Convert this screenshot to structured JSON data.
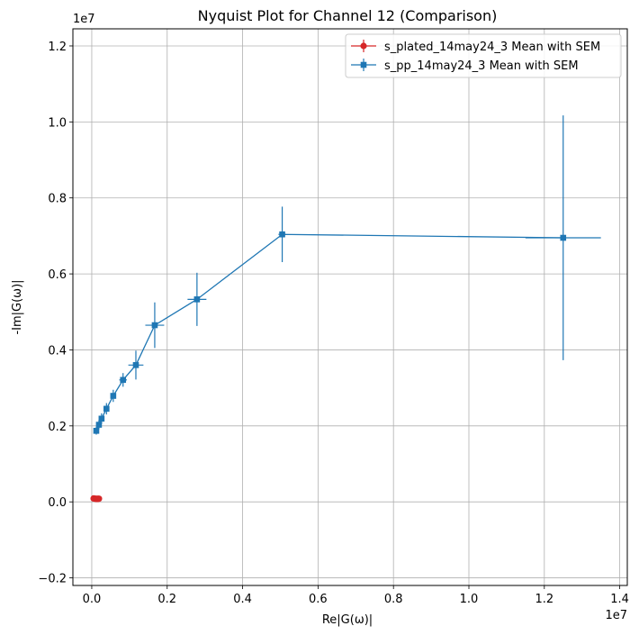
{
  "chart_data": {
    "type": "line",
    "title": "Nyquist Plot for Channel 12 (Comparison)",
    "xlabel": "Re|G(ω)|",
    "ylabel": "-Im|G(ω)|",
    "x_offset_label": "1e7",
    "y_offset_label": "1e7",
    "xlim": [
      -0.05,
      1.42
    ],
    "ylim": [
      -0.22,
      1.245
    ],
    "xticks": [
      0.0,
      0.2,
      0.4,
      0.6,
      0.8,
      1.0,
      1.2,
      1.4
    ],
    "xtick_labels": [
      "0.0",
      "0.2",
      "0.4",
      "0.6",
      "0.8",
      "1.0",
      "1.2",
      "1.4"
    ],
    "yticks": [
      -0.2,
      0.0,
      0.2,
      0.4,
      0.6,
      0.8,
      1.0,
      1.2
    ],
    "ytick_labels": [
      "−0.2",
      "0.0",
      "0.2",
      "0.4",
      "0.6",
      "0.8",
      "1.0",
      "1.2"
    ],
    "grid": true,
    "legend_position": "top-right",
    "series": [
      {
        "name": "s_plated_14may24_3 Mean with SEM",
        "color": "#d62728",
        "marker": "circle",
        "x": [
          0.005,
          0.008,
          0.011,
          0.013,
          0.015,
          0.017,
          0.019
        ],
        "y": [
          0.009,
          0.0085,
          0.008,
          0.0078,
          0.0078,
          0.008,
          0.0083
        ],
        "xerr": [
          0.001,
          0.001,
          0.001,
          0.001,
          0.001,
          0.001,
          0.001
        ],
        "yerr": [
          0.001,
          0.001,
          0.001,
          0.001,
          0.001,
          0.001,
          0.001
        ]
      },
      {
        "name": "s_pp_14may24_3 Mean with SEM",
        "color": "#1f77b4",
        "marker": "square",
        "x": [
          0.012,
          0.019,
          0.026,
          0.039,
          0.057,
          0.083,
          0.117,
          0.167,
          0.279,
          0.505,
          1.25
        ],
        "y": [
          0.187,
          0.203,
          0.219,
          0.245,
          0.279,
          0.321,
          0.36,
          0.465,
          0.533,
          0.704,
          0.695
        ],
        "xerr": [
          0.003,
          0.003,
          0.004,
          0.005,
          0.006,
          0.01,
          0.02,
          0.025,
          0.025,
          0.01,
          0.1
        ],
        "yerr": [
          0.01,
          0.012,
          0.014,
          0.015,
          0.016,
          0.018,
          0.038,
          0.06,
          0.07,
          0.073,
          0.322
        ]
      }
    ]
  }
}
